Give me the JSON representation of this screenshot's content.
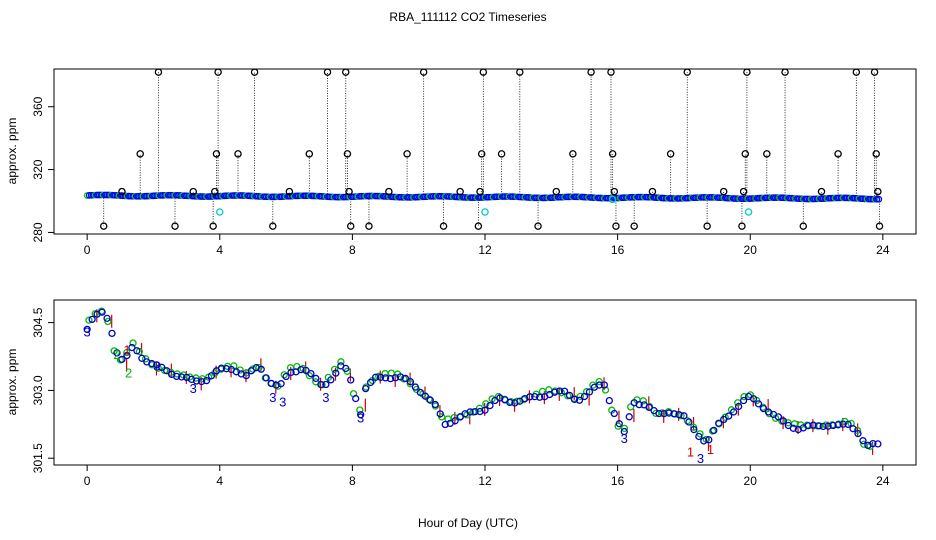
{
  "title": "RBA_111112  CO2 Timeseries",
  "xlabel": "Hour of Day (UTC)",
  "chart_data": [
    {
      "type": "scatter",
      "panel": "top",
      "ylabel": "approx. ppm",
      "xlim": [
        -1,
        25
      ],
      "ylim": [
        279,
        384
      ],
      "xticks": [
        0,
        4,
        8,
        12,
        16,
        20,
        24
      ],
      "yticks": [
        280,
        320,
        360
      ],
      "baseline_series": [
        {
          "color": "#0000ff",
          "x_start": 0,
          "x_end": 23.9,
          "y_start": 303.5,
          "y_end": 301.5
        }
      ],
      "spikes": [
        {
          "x": 0.5,
          "y": 284
        },
        {
          "x": 1.05,
          "y": 306
        },
        {
          "x": 1.6,
          "y": 330
        },
        {
          "x": 2.15,
          "y": 382
        },
        {
          "x": 2.65,
          "y": 284
        },
        {
          "x": 3.2,
          "y": 306
        },
        {
          "x": 3.8,
          "y": 284
        },
        {
          "x": 3.85,
          "y": 306
        },
        {
          "x": 3.9,
          "y": 330
        },
        {
          "x": 3.95,
          "y": 382
        },
        {
          "x": 4.55,
          "y": 330
        },
        {
          "x": 5.05,
          "y": 382
        },
        {
          "x": 5.6,
          "y": 284
        },
        {
          "x": 6.1,
          "y": 306
        },
        {
          "x": 6.7,
          "y": 330
        },
        {
          "x": 7.25,
          "y": 382
        },
        {
          "x": 7.8,
          "y": 382
        },
        {
          "x": 7.85,
          "y": 330
        },
        {
          "x": 7.9,
          "y": 306
        },
        {
          "x": 7.95,
          "y": 284
        },
        {
          "x": 8.5,
          "y": 284
        },
        {
          "x": 9.1,
          "y": 306
        },
        {
          "x": 9.65,
          "y": 330
        },
        {
          "x": 10.15,
          "y": 382
        },
        {
          "x": 10.75,
          "y": 284
        },
        {
          "x": 11.25,
          "y": 306
        },
        {
          "x": 11.8,
          "y": 284
        },
        {
          "x": 11.85,
          "y": 306
        },
        {
          "x": 11.9,
          "y": 330
        },
        {
          "x": 11.95,
          "y": 382
        },
        {
          "x": 12.5,
          "y": 330
        },
        {
          "x": 13.05,
          "y": 382
        },
        {
          "x": 13.6,
          "y": 284
        },
        {
          "x": 14.15,
          "y": 306
        },
        {
          "x": 14.65,
          "y": 330
        },
        {
          "x": 15.2,
          "y": 382
        },
        {
          "x": 15.8,
          "y": 382
        },
        {
          "x": 15.85,
          "y": 330
        },
        {
          "x": 15.9,
          "y": 306
        },
        {
          "x": 15.95,
          "y": 284
        },
        {
          "x": 16.5,
          "y": 284
        },
        {
          "x": 17.05,
          "y": 306
        },
        {
          "x": 17.6,
          "y": 330
        },
        {
          "x": 18.1,
          "y": 382
        },
        {
          "x": 18.7,
          "y": 284
        },
        {
          "x": 19.2,
          "y": 306
        },
        {
          "x": 19.75,
          "y": 284
        },
        {
          "x": 19.8,
          "y": 306
        },
        {
          "x": 19.85,
          "y": 330
        },
        {
          "x": 19.9,
          "y": 382
        },
        {
          "x": 20.5,
          "y": 330
        },
        {
          "x": 21.05,
          "y": 382
        },
        {
          "x": 21.6,
          "y": 284
        },
        {
          "x": 22.15,
          "y": 306
        },
        {
          "x": 22.65,
          "y": 330
        },
        {
          "x": 23.2,
          "y": 382
        },
        {
          "x": 23.75,
          "y": 382
        },
        {
          "x": 23.8,
          "y": 330
        },
        {
          "x": 23.85,
          "y": 306
        },
        {
          "x": 23.9,
          "y": 284
        }
      ],
      "cyan_points": [
        {
          "x": 4.0,
          "y": 293
        },
        {
          "x": 12.0,
          "y": 293
        },
        {
          "x": 15.85,
          "y": 301
        },
        {
          "x": 19.95,
          "y": 293
        }
      ],
      "colors": {
        "baseline": "#0000ff",
        "spike": "#000000",
        "cyan": "#00cccc",
        "green": "#00cc00"
      }
    },
    {
      "type": "scatter",
      "panel": "bottom",
      "ylabel": "approx. ppm",
      "xlim": [
        -1,
        25
      ],
      "ylim": [
        301.35,
        305.0
      ],
      "xticks": [
        0,
        4,
        8,
        12,
        16,
        20,
        24
      ],
      "yticks": [
        301.5,
        303.0,
        304.5
      ],
      "ytick_labels": [
        "301.5",
        "303.0",
        "304.5"
      ],
      "series": [
        {
          "marker": "3",
          "color": "#0000cc"
        },
        {
          "marker": "2",
          "color": "#00bb00"
        },
        {
          "marker": "1",
          "color": "#cc0000"
        }
      ],
      "trend": [
        [
          0.0,
          304.35
        ],
        [
          0.2,
          304.6
        ],
        [
          0.5,
          304.75
        ],
        [
          0.7,
          304.5
        ],
        [
          0.85,
          303.9
        ],
        [
          1.1,
          303.6
        ],
        [
          1.4,
          304.0
        ],
        [
          1.7,
          303.7
        ],
        [
          2.0,
          303.55
        ],
        [
          2.4,
          303.45
        ],
        [
          2.8,
          303.3
        ],
        [
          3.2,
          303.2
        ],
        [
          3.6,
          303.25
        ],
        [
          4.0,
          303.45
        ],
        [
          4.4,
          303.5
        ],
        [
          4.8,
          303.3
        ],
        [
          5.2,
          303.55
        ],
        [
          5.5,
          303.2
        ],
        [
          5.8,
          303.05
        ],
        [
          6.1,
          303.4
        ],
        [
          6.5,
          303.5
        ],
        [
          6.8,
          303.3
        ],
        [
          7.1,
          303.1
        ],
        [
          7.4,
          303.3
        ],
        [
          7.7,
          303.55
        ],
        [
          7.9,
          303.35
        ],
        [
          8.1,
          302.85
        ],
        [
          8.25,
          302.5
        ],
        [
          8.4,
          303.05
        ],
        [
          8.7,
          303.25
        ],
        [
          9.0,
          303.3
        ],
        [
          9.4,
          303.3
        ],
        [
          9.8,
          303.15
        ],
        [
          10.2,
          302.9
        ],
        [
          10.5,
          302.65
        ],
        [
          10.8,
          302.25
        ],
        [
          11.2,
          302.4
        ],
        [
          11.6,
          302.5
        ],
        [
          12.0,
          302.6
        ],
        [
          12.4,
          302.8
        ],
        [
          12.8,
          302.75
        ],
        [
          13.2,
          302.8
        ],
        [
          13.6,
          302.85
        ],
        [
          14.0,
          302.95
        ],
        [
          14.4,
          302.95
        ],
        [
          14.8,
          302.8
        ],
        [
          15.1,
          302.9
        ],
        [
          15.4,
          303.1
        ],
        [
          15.6,
          303.15
        ],
        [
          15.8,
          302.7
        ],
        [
          16.0,
          302.3
        ],
        [
          16.2,
          302.05
        ],
        [
          16.5,
          302.75
        ],
        [
          16.8,
          302.7
        ],
        [
          17.2,
          302.45
        ],
        [
          17.6,
          302.55
        ],
        [
          18.0,
          302.4
        ],
        [
          18.4,
          302.05
        ],
        [
          18.7,
          301.85
        ],
        [
          19.0,
          302.2
        ],
        [
          19.4,
          302.5
        ],
        [
          19.8,
          302.75
        ],
        [
          20.0,
          302.85
        ],
        [
          20.3,
          302.7
        ],
        [
          20.7,
          302.45
        ],
        [
          21.1,
          302.25
        ],
        [
          21.5,
          302.15
        ],
        [
          21.9,
          302.2
        ],
        [
          22.3,
          302.25
        ],
        [
          22.7,
          302.2
        ],
        [
          23.0,
          302.25
        ],
        [
          23.3,
          302.05
        ],
        [
          23.5,
          301.75
        ],
        [
          23.8,
          301.8
        ]
      ],
      "outliers": [
        {
          "x": 0.0,
          "y": 304.3,
          "marker": "3"
        },
        {
          "x": 0.9,
          "y": 303.8,
          "marker": "2"
        },
        {
          "x": 1.2,
          "y": 303.9,
          "marker": "1"
        },
        {
          "x": 1.25,
          "y": 303.4,
          "marker": "2"
        },
        {
          "x": 2.1,
          "y": 303.55,
          "marker": "3"
        },
        {
          "x": 3.2,
          "y": 303.05,
          "marker": "3"
        },
        {
          "x": 5.6,
          "y": 302.85,
          "marker": "3"
        },
        {
          "x": 5.9,
          "y": 302.75,
          "marker": "3"
        },
        {
          "x": 7.2,
          "y": 302.85,
          "marker": "3"
        },
        {
          "x": 8.25,
          "y": 302.4,
          "marker": "3"
        },
        {
          "x": 16.2,
          "y": 301.95,
          "marker": "3"
        },
        {
          "x": 18.2,
          "y": 301.65,
          "marker": "1"
        },
        {
          "x": 18.5,
          "y": 301.5,
          "marker": "3"
        },
        {
          "x": 18.8,
          "y": 301.7,
          "marker": "1"
        }
      ]
    }
  ]
}
